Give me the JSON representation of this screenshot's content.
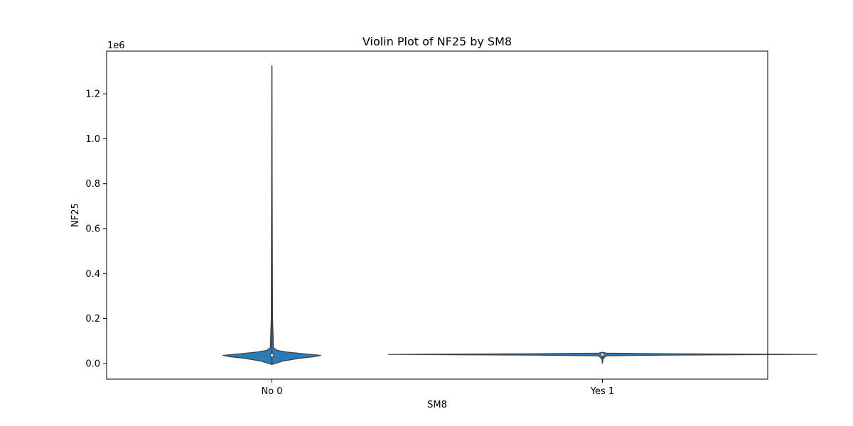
{
  "chart_data": {
    "type": "violin",
    "title": "Violin Plot of NF25 by SM8",
    "xlabel": "SM8",
    "ylabel": "NF25",
    "y_offset_label": "1e6",
    "y_scale_factor": 1000000,
    "ylim": [
      -70000,
      1390000
    ],
    "yticks": [
      0.0,
      0.2,
      0.4,
      0.6,
      0.8,
      1.0,
      1.2
    ],
    "y_tick_labels": [
      "0.0",
      "0.2",
      "0.4",
      "0.6",
      "0.8",
      "1.0",
      "1.2"
    ],
    "categories": [
      "No 0",
      "Yes 1"
    ],
    "fill_color": "#2d7bb6",
    "edge_color": "#3f3f3f",
    "grid": false,
    "violins": [
      {
        "category": "No 0",
        "min": -5000,
        "q1": 31000,
        "median": 36000,
        "q3": 40000,
        "max": 1325000,
        "density_profile": [
          {
            "y": -5000,
            "width": 0.0
          },
          {
            "y": 10000,
            "width": 0.08
          },
          {
            "y": 22000,
            "width": 0.2
          },
          {
            "y": 30000,
            "width": 0.32
          },
          {
            "y": 36000,
            "width": 0.37
          },
          {
            "y": 42000,
            "width": 0.26
          },
          {
            "y": 50000,
            "width": 0.12
          },
          {
            "y": 58000,
            "width": 0.04
          },
          {
            "y": 70000,
            "width": 0.012
          },
          {
            "y": 200000,
            "width": 0.005
          },
          {
            "y": 1325000,
            "width": 0.0
          }
        ]
      },
      {
        "category": "Yes 1",
        "min": 0,
        "q1": 39000,
        "median": 40000,
        "q3": 41000,
        "max": 50000,
        "density_profile": [
          {
            "y": 0,
            "width": 0.0
          },
          {
            "y": 20000,
            "width": 0.004
          },
          {
            "y": 34000,
            "width": 0.03
          },
          {
            "y": 37000,
            "width": 0.5
          },
          {
            "y": 40000,
            "width": 1.62
          },
          {
            "y": 43000,
            "width": 0.5
          },
          {
            "y": 46000,
            "width": 0.03
          },
          {
            "y": 50000,
            "width": 0.0
          }
        ]
      }
    ]
  }
}
